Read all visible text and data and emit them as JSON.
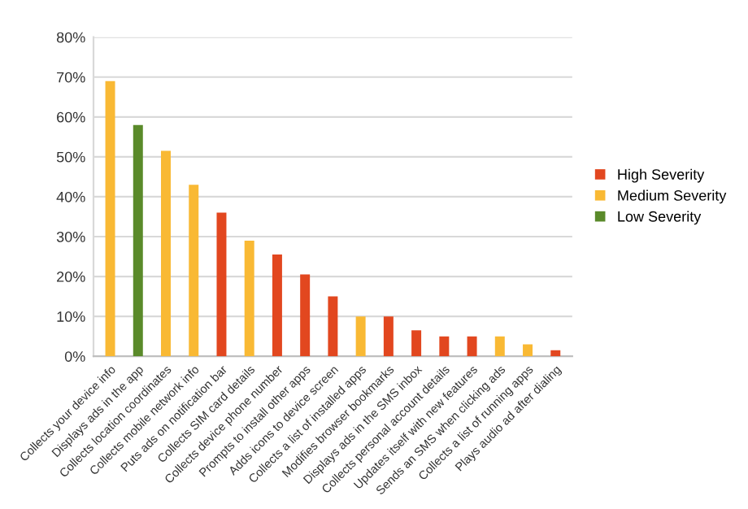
{
  "chart_data": {
    "type": "bar",
    "categories": [
      "Collects your device info",
      "Displays ads in the app",
      "Collects location coordinates",
      "Collects mobile network info",
      "Puts ads on notification bar",
      "Collects SIM card details",
      "Collects device phone number",
      "Prompts to install other apps",
      "Adds icons to device screen",
      "Collects a list of installed apps",
      "Modifies browser bookmarks",
      "Displays ads in the SMS inbox",
      "Collects personal account details",
      "Updates itself with new features",
      "Sends an SMS when clicking ads",
      "Collects a list of running apps",
      "Plays audio ad after dialing"
    ],
    "series": [
      {
        "name": "High Severity",
        "color": "#e2471f",
        "values": [
          null,
          null,
          null,
          null,
          36,
          null,
          25.5,
          20.5,
          15,
          null,
          10,
          6.5,
          5,
          5,
          null,
          null,
          1.5
        ]
      },
      {
        "name": "Medium Severity",
        "color": "#f9b934",
        "values": [
          69,
          null,
          51.5,
          43,
          null,
          29,
          null,
          null,
          null,
          10,
          null,
          null,
          null,
          null,
          5,
          3,
          null
        ]
      },
      {
        "name": "Low Severity",
        "color": "#5a8a2a",
        "values": [
          null,
          58,
          null,
          null,
          null,
          null,
          null,
          null,
          null,
          null,
          null,
          null,
          null,
          null,
          null,
          null,
          null
        ]
      }
    ],
    "ylim": [
      0,
      80
    ],
    "yticks": [
      {
        "value": 0,
        "label": "0%"
      },
      {
        "value": 10,
        "label": "10%"
      },
      {
        "value": 20,
        "label": "20%"
      },
      {
        "value": 30,
        "label": "30%"
      },
      {
        "value": 40,
        "label": "40%"
      },
      {
        "value": 50,
        "label": "50%"
      },
      {
        "value": 60,
        "label": "60%"
      },
      {
        "value": 70,
        "label": "70%"
      },
      {
        "value": 80,
        "label": "80%"
      }
    ],
    "grid": "y",
    "legend": "right"
  }
}
